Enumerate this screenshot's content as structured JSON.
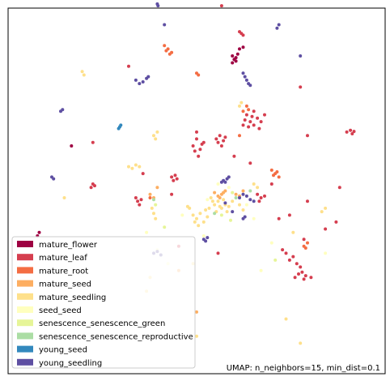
{
  "chart_data": {
    "type": "scatter",
    "title": "",
    "xlabel": "",
    "ylabel": "",
    "grid": false,
    "axis_ticks": false,
    "xlim": [
      0,
      10
    ],
    "ylim": [
      0,
      10
    ],
    "legend_placement": "bottom-left",
    "annotation": "UMAP: n_neighbors=15, min_dist=0.1",
    "point_size": 2,
    "series": [
      {
        "name": "mature_flower",
        "color": "#9e0142",
        "points": [
          [
            6.0,
            8.9
          ],
          [
            6.0,
            8.7
          ],
          [
            6.1,
            8.85
          ],
          [
            6.15,
            8.95
          ],
          [
            6.2,
            9.1
          ],
          [
            6.05,
            8.8
          ],
          [
            6.1,
            8.75
          ],
          [
            6.3,
            9.15
          ],
          [
            1.5,
            6.3
          ],
          [
            0.6,
            3.8
          ],
          [
            0.55,
            3.7
          ]
        ]
      },
      {
        "name": "mature_leaf",
        "color": "#d53e4f",
        "points": [
          [
            6.4,
            7.2
          ],
          [
            6.5,
            7.0
          ],
          [
            6.6,
            6.9
          ],
          [
            6.7,
            7.1
          ],
          [
            6.45,
            6.85
          ],
          [
            6.8,
            7.0
          ],
          [
            6.35,
            7.05
          ],
          [
            6.55,
            7.15
          ],
          [
            6.75,
            6.8
          ],
          [
            6.9,
            7.2
          ],
          [
            6.6,
            7.3
          ],
          [
            6.3,
            6.9
          ],
          [
            4.9,
            6.3
          ],
          [
            5.0,
            6.5
          ],
          [
            5.1,
            6.2
          ],
          [
            5.2,
            6.4
          ],
          [
            5.05,
            6.0
          ],
          [
            4.95,
            6.15
          ],
          [
            5.15,
            6.35
          ],
          [
            5.0,
            6.7
          ],
          [
            5.6,
            6.4
          ],
          [
            5.7,
            6.3
          ],
          [
            5.75,
            6.45
          ],
          [
            5.65,
            6.6
          ],
          [
            5.8,
            6.55
          ],
          [
            5.55,
            6.5
          ],
          [
            4.3,
            5.4
          ],
          [
            4.35,
            5.3
          ],
          [
            4.4,
            5.45
          ],
          [
            4.45,
            5.35
          ],
          [
            3.3,
            4.8
          ],
          [
            3.35,
            4.7
          ],
          [
            3.4,
            4.6
          ],
          [
            3.45,
            4.75
          ],
          [
            2.05,
            5.1
          ],
          [
            2.1,
            5.2
          ],
          [
            2.15,
            5.15
          ],
          [
            6.7,
            4.9
          ],
          [
            6.8,
            4.8
          ],
          [
            6.75,
            4.7
          ],
          [
            6.9,
            4.85
          ],
          [
            7.4,
            3.3
          ],
          [
            7.5,
            3.2
          ],
          [
            7.6,
            3.0
          ],
          [
            7.7,
            3.1
          ],
          [
            7.8,
            2.9
          ],
          [
            7.9,
            2.8
          ],
          [
            7.75,
            2.5
          ],
          [
            7.85,
            2.6
          ],
          [
            8.0,
            2.45
          ],
          [
            8.05,
            2.55
          ],
          [
            7.95,
            2.65
          ],
          [
            8.2,
            2.5
          ],
          [
            9.2,
            6.7
          ],
          [
            9.3,
            6.75
          ],
          [
            9.35,
            6.65
          ],
          [
            9.4,
            6.72
          ],
          [
            6.2,
            9.6
          ],
          [
            6.25,
            9.55
          ],
          [
            6.3,
            9.5
          ],
          [
            5.7,
            10.35
          ],
          [
            3.1,
            8.6
          ],
          [
            2.1,
            6.4
          ],
          [
            8.1,
            6.6
          ],
          [
            7.1,
            5.2
          ],
          [
            9.0,
            5.1
          ],
          [
            8.0,
            3.6
          ],
          [
            7.3,
            4.2
          ],
          [
            6.5,
            5.8
          ],
          [
            6.05,
            6.0
          ],
          [
            8.9,
            4.1
          ],
          [
            4.5,
            3.4
          ],
          [
            5.6,
            3.2
          ],
          [
            8.1,
            4.7
          ],
          [
            7.6,
            4.3
          ],
          [
            8.6,
            3.9
          ],
          [
            7.9,
            8.0
          ],
          [
            4.3,
            4.9
          ],
          [
            3.5,
            5.5
          ]
        ]
      },
      {
        "name": "mature_root",
        "color": "#f46d43",
        "points": [
          [
            4.1,
            9.2
          ],
          [
            4.15,
            9.05
          ],
          [
            4.25,
            8.95
          ],
          [
            4.3,
            9.0
          ],
          [
            4.2,
            9.1
          ],
          [
            5.0,
            8.4
          ],
          [
            5.05,
            8.35
          ],
          [
            7.1,
            5.6
          ],
          [
            7.15,
            5.45
          ],
          [
            7.2,
            5.5
          ],
          [
            7.25,
            5.55
          ],
          [
            7.3,
            5.4
          ],
          [
            6.4,
            7.45
          ],
          [
            6.45,
            7.35
          ],
          [
            6.3,
            7.3
          ],
          [
            8.0,
            3.4
          ],
          [
            8.05,
            3.35
          ],
          [
            8.1,
            3.5
          ],
          [
            6.2,
            6.6
          ],
          [
            3.7,
            4.8
          ]
        ]
      },
      {
        "name": "mature_seed",
        "color": "#fdae61",
        "points": [
          [
            5.5,
            4.95
          ],
          [
            5.6,
            4.85
          ],
          [
            5.7,
            4.9
          ],
          [
            5.8,
            5.0
          ],
          [
            5.65,
            4.8
          ],
          [
            5.75,
            4.95
          ],
          [
            6.1,
            4.9
          ],
          [
            6.2,
            4.85
          ],
          [
            6.3,
            5.0
          ],
          [
            3.7,
            4.9
          ],
          [
            3.8,
            4.8
          ],
          [
            3.9,
            5.1
          ],
          [
            4.5,
            2.7
          ],
          [
            5.0,
            1.5
          ]
        ]
      },
      {
        "name": "mature_seedling",
        "color": "#fee08b",
        "points": [
          [
            5.4,
            4.8
          ],
          [
            5.5,
            4.6
          ],
          [
            5.6,
            4.7
          ],
          [
            5.7,
            4.5
          ],
          [
            5.8,
            4.6
          ],
          [
            5.55,
            4.4
          ],
          [
            5.65,
            4.55
          ],
          [
            5.45,
            4.7
          ],
          [
            5.75,
            4.75
          ],
          [
            5.85,
            4.4
          ],
          [
            5.9,
            4.55
          ],
          [
            6.0,
            4.7
          ],
          [
            6.2,
            4.6
          ],
          [
            6.3,
            4.45
          ],
          [
            4.9,
            4.3
          ],
          [
            5.0,
            4.2
          ],
          [
            5.1,
            4.35
          ],
          [
            5.2,
            4.1
          ],
          [
            5.3,
            4.25
          ],
          [
            5.25,
            4.45
          ],
          [
            5.35,
            4.5
          ],
          [
            4.95,
            4.1
          ],
          [
            5.05,
            4.0
          ],
          [
            3.1,
            5.7
          ],
          [
            3.2,
            5.65
          ],
          [
            3.3,
            5.75
          ],
          [
            3.4,
            5.7
          ],
          [
            3.8,
            6.6
          ],
          [
            3.85,
            6.5
          ],
          [
            3.9,
            6.7
          ],
          [
            3.75,
            4.5
          ],
          [
            3.8,
            4.35
          ],
          [
            3.85,
            4.2
          ],
          [
            4.75,
            4.55
          ],
          [
            4.8,
            4.5
          ],
          [
            6.2,
            7.45
          ],
          [
            6.25,
            7.55
          ],
          [
            6.6,
            5.2
          ],
          [
            6.7,
            5.1
          ],
          [
            1.8,
            8.45
          ],
          [
            1.85,
            8.35
          ],
          [
            1.3,
            4.8
          ],
          [
            3.7,
            2.5
          ],
          [
            3.6,
            2.1
          ],
          [
            4.9,
            2.9
          ],
          [
            8.5,
            4.4
          ],
          [
            8.6,
            4.5
          ],
          [
            7.7,
            3.8
          ],
          [
            7.5,
            1.3
          ],
          [
            5.0,
            0.8
          ],
          [
            7.9,
            0.6
          ]
        ]
      },
      {
        "name": "seed_seed",
        "color": "#ffffbf",
        "points": [
          [
            5.3,
            4.75
          ],
          [
            5.6,
            5.2
          ],
          [
            5.9,
            5.1
          ],
          [
            6.4,
            4.6
          ],
          [
            4.6,
            4.3
          ],
          [
            3.6,
            3.8
          ],
          [
            3.9,
            3.3
          ],
          [
            6.6,
            4.2
          ],
          [
            7.1,
            3.5
          ],
          [
            6.8,
            2.7
          ],
          [
            5.2,
            3.7
          ],
          [
            4.2,
            2.9
          ],
          [
            8.6,
            3.2
          ]
        ]
      },
      {
        "name": "senescence_senescence_green",
        "color": "#e6f598",
        "points": [
          [
            5.7,
            4.3
          ],
          [
            6.0,
            4.95
          ],
          [
            4.1,
            3.95
          ],
          [
            3.85,
            4.6
          ],
          [
            7.2,
            3.0
          ],
          [
            5.95,
            4.15
          ]
        ]
      },
      {
        "name": "senescence_senescence_reproductive",
        "color": "#abdda4",
        "points": [
          [
            6.1,
            4.8
          ],
          [
            3.8,
            4.75
          ],
          [
            5.5,
            4.35
          ],
          [
            6.5,
            5.0
          ]
        ]
      },
      {
        "name": "young_seed",
        "color": "#3288bd",
        "points": [
          [
            2.85,
            6.85
          ],
          [
            2.82,
            6.8
          ],
          [
            2.88,
            6.9
          ]
        ]
      },
      {
        "name": "young_seedling",
        "color": "#5e4fa2",
        "points": [
          [
            3.9,
            10.4
          ],
          [
            3.92,
            10.35
          ],
          [
            4.1,
            9.8
          ],
          [
            7.3,
            9.8
          ],
          [
            7.25,
            9.7
          ],
          [
            3.3,
            8.2
          ],
          [
            3.4,
            8.1
          ],
          [
            3.5,
            8.15
          ],
          [
            3.6,
            8.25
          ],
          [
            3.65,
            8.3
          ],
          [
            1.2,
            7.3
          ],
          [
            1.25,
            7.35
          ],
          [
            0.95,
            5.4
          ],
          [
            1.0,
            5.35
          ],
          [
            5.75,
            5.3
          ],
          [
            5.8,
            5.25
          ],
          [
            5.85,
            5.35
          ],
          [
            5.9,
            5.4
          ],
          [
            5.7,
            5.25
          ],
          [
            6.2,
            4.8
          ],
          [
            6.3,
            4.9
          ],
          [
            6.4,
            4.85
          ],
          [
            6.5,
            4.75
          ],
          [
            6.6,
            4.7
          ],
          [
            6.3,
            4.2
          ],
          [
            6.35,
            4.25
          ],
          [
            5.2,
            3.6
          ],
          [
            5.25,
            3.55
          ],
          [
            5.3,
            3.65
          ],
          [
            3.8,
            3.2
          ],
          [
            3.9,
            3.25
          ],
          [
            4.0,
            3.15
          ],
          [
            6.3,
            8.4
          ],
          [
            6.35,
            8.3
          ],
          [
            6.4,
            8.2
          ],
          [
            6.45,
            8.1
          ],
          [
            6.5,
            8.05
          ],
          [
            7.9,
            8.9
          ],
          [
            5.8,
            4.65
          ],
          [
            6.0,
            4.4
          ]
        ]
      }
    ]
  }
}
